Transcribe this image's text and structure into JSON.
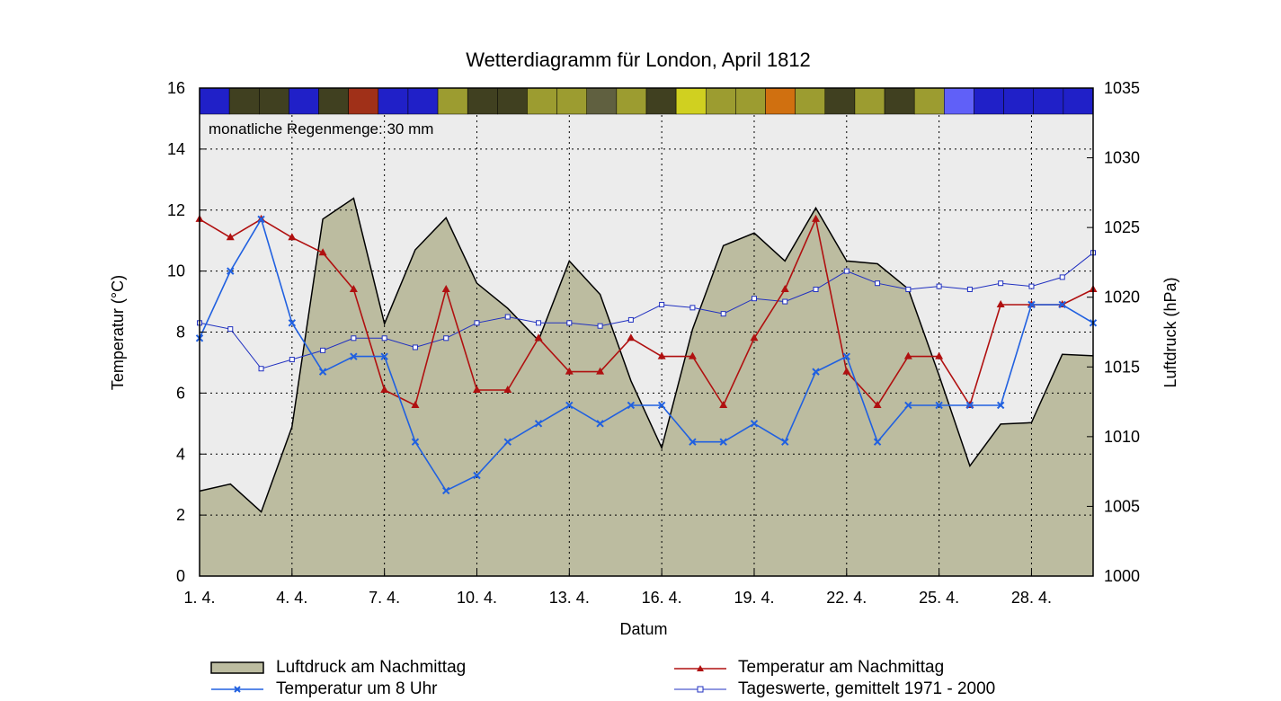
{
  "chart_data": {
    "type": "line",
    "title": "Wetterdiagramm für London, April 1812",
    "xlabel": "Datum",
    "ylabel_left": "Temperatur (°C)",
    "ylabel_right": "Luftdruck (hPa)",
    "annotation": "monatliche Regenmenge: 30 mm",
    "x_ticks": [
      "1. 4.",
      "4. 4.",
      "7. 4.",
      "10. 4.",
      "13. 4.",
      "16. 4.",
      "19. 4.",
      "22. 4.",
      "25. 4.",
      "28. 4."
    ],
    "x_tick_days": [
      1,
      4,
      7,
      10,
      13,
      16,
      19,
      22,
      25,
      28
    ],
    "xlim": [
      1,
      30
    ],
    "ylim_left": [
      0,
      16
    ],
    "ylim_right": [
      1000,
      1035
    ],
    "y_ticks_left": [
      "0",
      "2",
      "4",
      "6",
      "8",
      "10",
      "12",
      "14",
      "16"
    ],
    "y_ticks_right": [
      "1000",
      "1005",
      "1010",
      "1015",
      "1020",
      "1025",
      "1030",
      "1035"
    ],
    "grid": true,
    "legend_position": "bottom",
    "days": [
      1,
      2,
      3,
      4,
      5,
      6,
      7,
      8,
      9,
      10,
      11,
      12,
      13,
      14,
      15,
      16,
      17,
      18,
      19,
      20,
      21,
      22,
      23,
      24,
      25,
      26,
      27,
      28,
      29,
      30
    ],
    "series": [
      {
        "name": "Luftdruck am Nachmittag",
        "kind": "area",
        "axis": "right",
        "color": "#bcbca0",
        "values": [
          1006.1,
          1006.6,
          1004.6,
          1010.7,
          1025.6,
          1027.1,
          1018.1,
          1023.4,
          1025.7,
          1021.0,
          1019.2,
          1016.9,
          1022.6,
          1020.2,
          1014.0,
          1009.2,
          1017.7,
          1023.7,
          1024.6,
          1022.6,
          1026.4,
          1022.6,
          1022.4,
          1020.6,
          1014.4,
          1007.9,
          1010.9,
          1011.0,
          1015.9,
          1015.8
        ]
      },
      {
        "name": "Temperatur am Nachmittag",
        "kind": "line",
        "axis": "left",
        "color": "#b01010",
        "marker": "triangle",
        "values": [
          11.7,
          11.1,
          11.7,
          11.1,
          10.6,
          9.4,
          6.1,
          5.6,
          9.4,
          6.1,
          6.1,
          7.8,
          6.7,
          6.7,
          7.8,
          7.2,
          7.2,
          5.6,
          7.8,
          9.4,
          11.7,
          6.7,
          5.6,
          7.2,
          7.2,
          5.6,
          8.9,
          8.9,
          8.9,
          9.4
        ]
      },
      {
        "name": "Temperatur um 8 Uhr",
        "kind": "line",
        "axis": "left",
        "color": "#2060e0",
        "marker": "x",
        "values": [
          7.8,
          10.0,
          11.7,
          8.3,
          6.7,
          7.2,
          7.2,
          4.4,
          2.8,
          3.3,
          4.4,
          5.0,
          5.6,
          5.0,
          5.6,
          5.6,
          4.4,
          4.4,
          5.0,
          4.4,
          6.7,
          7.2,
          4.4,
          5.6,
          5.6,
          5.6,
          5.6,
          8.9,
          8.9,
          8.3
        ]
      },
      {
        "name": "Tageswerte, gemittelt 1971 - 2000",
        "kind": "line",
        "axis": "left",
        "color": "#2030c0",
        "marker": "square",
        "values": [
          8.3,
          8.1,
          6.8,
          7.1,
          7.4,
          7.8,
          7.8,
          7.5,
          7.8,
          8.3,
          8.5,
          8.3,
          8.3,
          8.2,
          8.4,
          8.9,
          8.8,
          8.6,
          9.1,
          9.0,
          9.4,
          10.0,
          9.6,
          9.4,
          9.5,
          9.4,
          9.6,
          9.5,
          9.8,
          10.6
        ]
      }
    ],
    "weather_bar": [
      "#2020c8",
      "#404020",
      "#404020",
      "#2020c8",
      "#404020",
      "#a03018",
      "#2020c8",
      "#2020c8",
      "#9c9c30",
      "#404020",
      "#404020",
      "#9c9c30",
      "#9c9c30",
      "#606040",
      "#9c9c30",
      "#404020",
      "#d0d020",
      "#9c9c30",
      "#9c9c30",
      "#d07010",
      "#9c9c30",
      "#404020",
      "#9c9c30",
      "#404020",
      "#9c9c30",
      "#6060f8",
      "#2020c8",
      "#2020c8",
      "#2020c8",
      "#2020c8"
    ]
  }
}
